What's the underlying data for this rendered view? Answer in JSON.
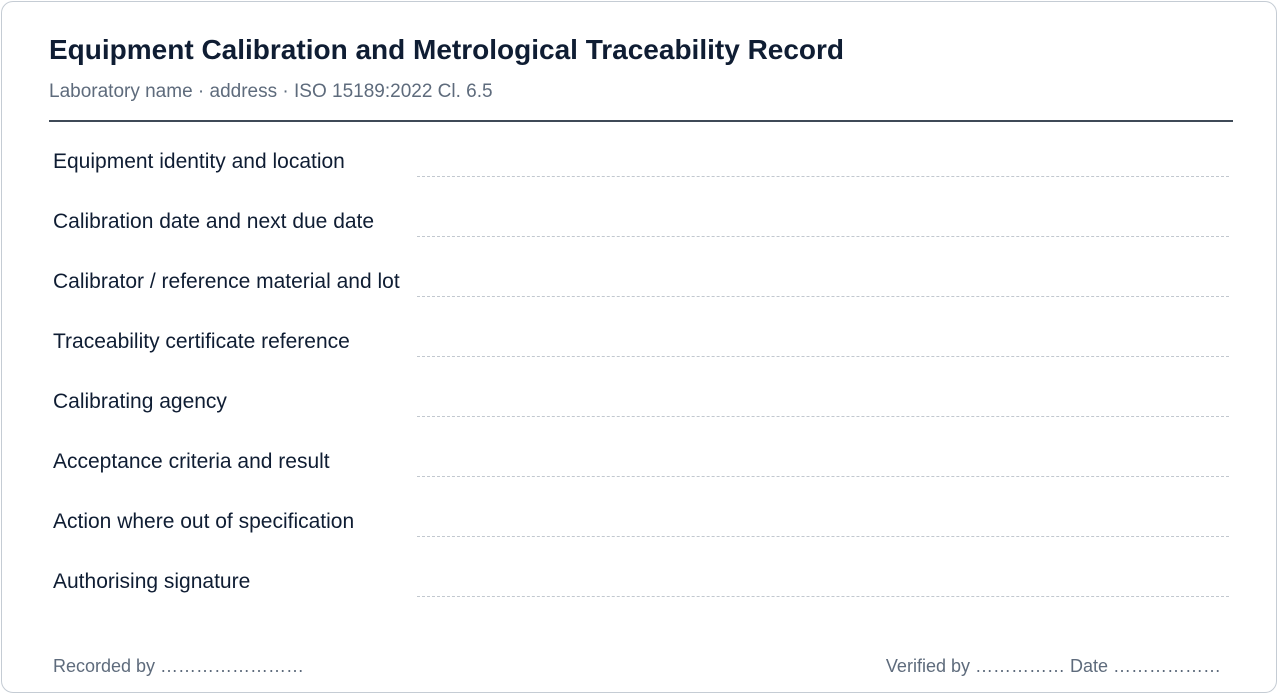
{
  "header": {
    "title": "Equipment Calibration and Metrological Traceability Record",
    "subtitle": "Laboratory name · address · ISO 15189:2022 Cl. 6.5"
  },
  "fields": [
    {
      "label": "Equipment identity and location",
      "value": ""
    },
    {
      "label": "Calibration date and next due date",
      "value": ""
    },
    {
      "label": "Calibrator / reference material and lot",
      "value": ""
    },
    {
      "label": "Traceability certificate reference",
      "value": ""
    },
    {
      "label": "Calibrating agency",
      "value": ""
    },
    {
      "label": "Acceptance criteria and result",
      "value": ""
    },
    {
      "label": "Action where out of specification",
      "value": ""
    },
    {
      "label": "Authorising signature",
      "value": ""
    }
  ],
  "footer": {
    "recorded_by": "Recorded by ……………………",
    "verified_by": "Verified by …………… Date ………………"
  }
}
